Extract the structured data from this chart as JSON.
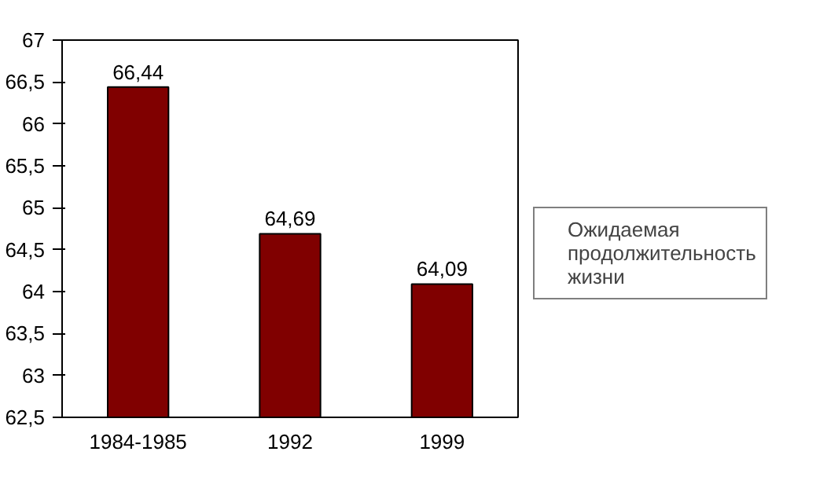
{
  "chart_data": {
    "type": "bar",
    "categories": [
      "1984-1985",
      "1992",
      "1999"
    ],
    "series": [
      {
        "name": "Ожидаемая продолжительность жизни",
        "color": "#800000",
        "values": [
          66.44,
          64.69,
          64.09
        ],
        "value_labels": [
          "66,44",
          "64,69",
          "64,09"
        ]
      }
    ],
    "ylim": [
      62.5,
      67
    ],
    "yticks": [
      {
        "value": 62.5,
        "label": "62,5"
      },
      63,
      {
        "value": 63.5,
        "label": "63,5"
      },
      64,
      {
        "value": 64.5,
        "label": "64,5"
      },
      65,
      {
        "value": 65.5,
        "label": "65,5"
      },
      66,
      {
        "value": 66.5,
        "label": "66,5"
      },
      67
    ],
    "legend": "right",
    "grid": false
  }
}
